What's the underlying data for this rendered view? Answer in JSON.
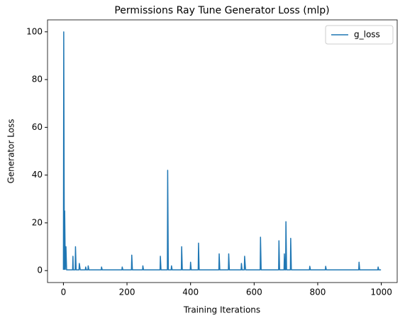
{
  "chart_data": {
    "type": "line",
    "title": "Permissions Ray Tune Generator Loss (mlp)",
    "xlabel": "Training Iterations",
    "ylabel": "Generator Loss",
    "x": [
      0,
      1,
      3,
      4,
      6,
      8,
      10,
      29,
      30,
      31,
      37,
      38,
      40,
      49,
      50,
      53,
      69,
      70,
      72,
      77,
      78,
      80,
      119,
      120,
      122,
      184,
      185,
      187,
      214,
      215,
      217,
      249,
      250,
      252,
      304,
      305,
      307,
      327,
      328,
      330,
      339,
      340,
      342,
      371,
      372,
      374,
      399,
      400,
      402,
      424,
      425,
      427,
      489,
      490,
      492,
      519,
      520,
      522,
      559,
      560,
      562,
      569,
      570,
      573,
      619,
      620,
      622,
      677,
      678,
      680,
      694,
      695,
      697,
      699,
      700,
      702,
      714,
      715,
      717,
      774,
      775,
      777,
      824,
      825,
      827,
      929,
      930,
      932,
      989,
      990,
      992,
      999
    ],
    "series": [
      {
        "name": "g_loss",
        "color": "#1f77b4",
        "values": [
          0.3,
          100,
          0.5,
          25,
          0.5,
          10,
          0.3,
          0.3,
          6,
          0.3,
          0.3,
          10,
          0.3,
          0.3,
          3,
          0.3,
          0.3,
          1.5,
          0.3,
          0.3,
          2,
          0.3,
          0.3,
          1.5,
          0.3,
          0.3,
          1.5,
          0.3,
          0.3,
          6.5,
          0.3,
          0.3,
          2,
          0.3,
          0.3,
          6,
          0.3,
          0.3,
          42,
          0.3,
          0.3,
          2,
          0.3,
          0.3,
          10,
          0.3,
          0.3,
          3.5,
          0.3,
          0.3,
          11.5,
          0.3,
          0.3,
          7,
          0.3,
          0.3,
          7,
          0.3,
          0.3,
          3,
          0.3,
          0.3,
          6,
          0.3,
          0.3,
          14,
          0.3,
          0.3,
          12.5,
          0.3,
          0.3,
          7,
          0.3,
          0.3,
          20.5,
          0.3,
          0.3,
          13.5,
          0.3,
          0.3,
          1.8,
          0.3,
          0.3,
          1.8,
          0.3,
          0.3,
          3.5,
          0.3,
          0.3,
          1.5,
          0.3,
          0.3
        ]
      }
    ],
    "xlim": [
      -50,
      1050
    ],
    "xticks": [
      0,
      200,
      400,
      600,
      800,
      1000
    ],
    "ylim": [
      -5,
      105
    ],
    "yticks": [
      0,
      20,
      40,
      60,
      80,
      100
    ],
    "legend": "upper right"
  }
}
